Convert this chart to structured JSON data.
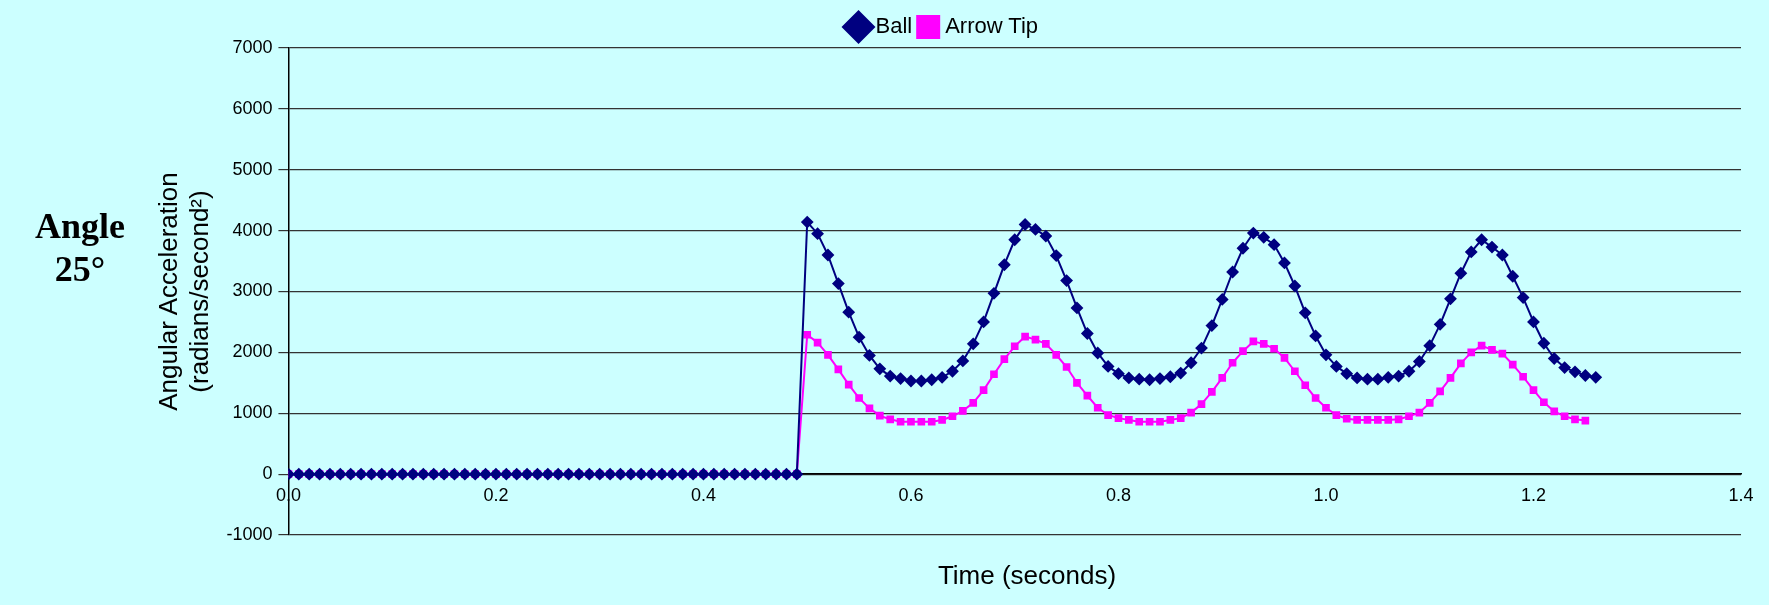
{
  "chart_data": {
    "type": "line",
    "title": "Angle 25°",
    "xlabel": "Time (seconds)",
    "ylabel": "Angular Acceleration\n(radians/second²)",
    "x": [
      0,
      0.01,
      0.02,
      0.03,
      0.04,
      0.05,
      0.06,
      0.07,
      0.08,
      0.09,
      0.1,
      0.11,
      0.12,
      0.13,
      0.14,
      0.15,
      0.16,
      0.17,
      0.18,
      0.19,
      0.2,
      0.21,
      0.22,
      0.23,
      0.24,
      0.25,
      0.26,
      0.27,
      0.28,
      0.29,
      0.3,
      0.31,
      0.32,
      0.33,
      0.34,
      0.35,
      0.36,
      0.37,
      0.38,
      0.39,
      0.4,
      0.41,
      0.42,
      0.43,
      0.44,
      0.45,
      0.46,
      0.47,
      0.48,
      0.49,
      0.5,
      0.51,
      0.52,
      0.53,
      0.54,
      0.55,
      0.56,
      0.57,
      0.58,
      0.59,
      0.6,
      0.61,
      0.62,
      0.63,
      0.64,
      0.65,
      0.66,
      0.67,
      0.68,
      0.69,
      0.7,
      0.71,
      0.72,
      0.73,
      0.74,
      0.75,
      0.76,
      0.77,
      0.78,
      0.79,
      0.8,
      0.81,
      0.82,
      0.83,
      0.84,
      0.85,
      0.86,
      0.87,
      0.88,
      0.89,
      0.9,
      0.91,
      0.92,
      0.93,
      0.94,
      0.95,
      0.96,
      0.97,
      0.98,
      0.99,
      1,
      1.01,
      1.02,
      1.03,
      1.04,
      1.05,
      1.06,
      1.07,
      1.08,
      1.09,
      1.1,
      1.11,
      1.12,
      1.13,
      1.14,
      1.15,
      1.16,
      1.17,
      1.18,
      1.19,
      1.2,
      1.21,
      1.22,
      1.23,
      1.24,
      1.25,
      1.26
    ],
    "series": [
      {
        "name": "Ball",
        "color": "#000080",
        "marker": "diamond",
        "values": [
          0,
          0,
          0,
          0,
          0,
          0,
          0,
          0,
          0,
          0,
          0,
          0,
          0,
          0,
          0,
          0,
          0,
          0,
          0,
          0,
          0,
          0,
          0,
          0,
          0,
          0,
          0,
          0,
          0,
          0,
          0,
          0,
          0,
          0,
          0,
          0,
          0,
          0,
          0,
          0,
          0,
          0,
          0,
          0,
          0,
          0,
          0,
          0,
          0,
          0,
          4140,
          3950,
          3600,
          3130,
          2660,
          2250,
          1950,
          1730,
          1610,
          1570,
          1530,
          1530,
          1550,
          1590,
          1690,
          1860,
          2140,
          2500,
          2970,
          3440,
          3850,
          4100,
          4020,
          3910,
          3590,
          3180,
          2730,
          2310,
          1990,
          1770,
          1650,
          1580,
          1560,
          1550,
          1570,
          1600,
          1660,
          1830,
          2070,
          2440,
          2870,
          3320,
          3710,
          3960,
          3890,
          3770,
          3470,
          3090,
          2650,
          2270,
          1960,
          1770,
          1650,
          1580,
          1560,
          1560,
          1590,
          1610,
          1690,
          1850,
          2110,
          2460,
          2880,
          3300,
          3650,
          3850,
          3730,
          3600,
          3250,
          2900,
          2500,
          2150,
          1900,
          1750,
          1680,
          1620,
          1590
        ]
      },
      {
        "name": "Arrow Tip",
        "color": "#ff00ff",
        "marker": "square",
        "values": [
          0,
          0,
          0,
          0,
          0,
          0,
          0,
          0,
          0,
          0,
          0,
          0,
          0,
          0,
          0,
          0,
          0,
          0,
          0,
          0,
          0,
          0,
          0,
          0,
          0,
          0,
          0,
          0,
          0,
          0,
          0,
          0,
          0,
          0,
          0,
          0,
          0,
          0,
          0,
          0,
          0,
          0,
          0,
          0,
          0,
          0,
          0,
          0,
          0,
          0,
          2290,
          2160,
          1960,
          1720,
          1470,
          1250,
          1080,
          960,
          900,
          860,
          860,
          860,
          860,
          890,
          950,
          1040,
          1170,
          1380,
          1640,
          1890,
          2100,
          2260,
          2210,
          2140,
          1960,
          1760,
          1500,
          1290,
          1090,
          970,
          920,
          890,
          860,
          860,
          860,
          890,
          920,
          1010,
          1150,
          1350,
          1580,
          1830,
          2020,
          2180,
          2140,
          2060,
          1910,
          1690,
          1460,
          1250,
          1090,
          970,
          910,
          890,
          890,
          890,
          890,
          900,
          950,
          1010,
          1170,
          1360,
          1580,
          1820,
          2000,
          2110,
          2040,
          1980,
          1800,
          1600,
          1380,
          1180,
          1030,
          950,
          900,
          880,
          null
        ]
      }
    ],
    "xlim": [
      0,
      1.4
    ],
    "xticks": [
      {
        "value": 0,
        "label": "0.0"
      },
      0.2,
      0.4,
      0.6,
      0.8,
      {
        "value": 1,
        "label": "1.0"
      },
      1.2,
      1.4
    ],
    "ylim": [
      -1000,
      7000
    ],
    "yticks": [
      -1000,
      0,
      1000,
      2000,
      3000,
      4000,
      5000,
      6000,
      7000
    ],
    "grid": "y",
    "legend": "top"
  }
}
